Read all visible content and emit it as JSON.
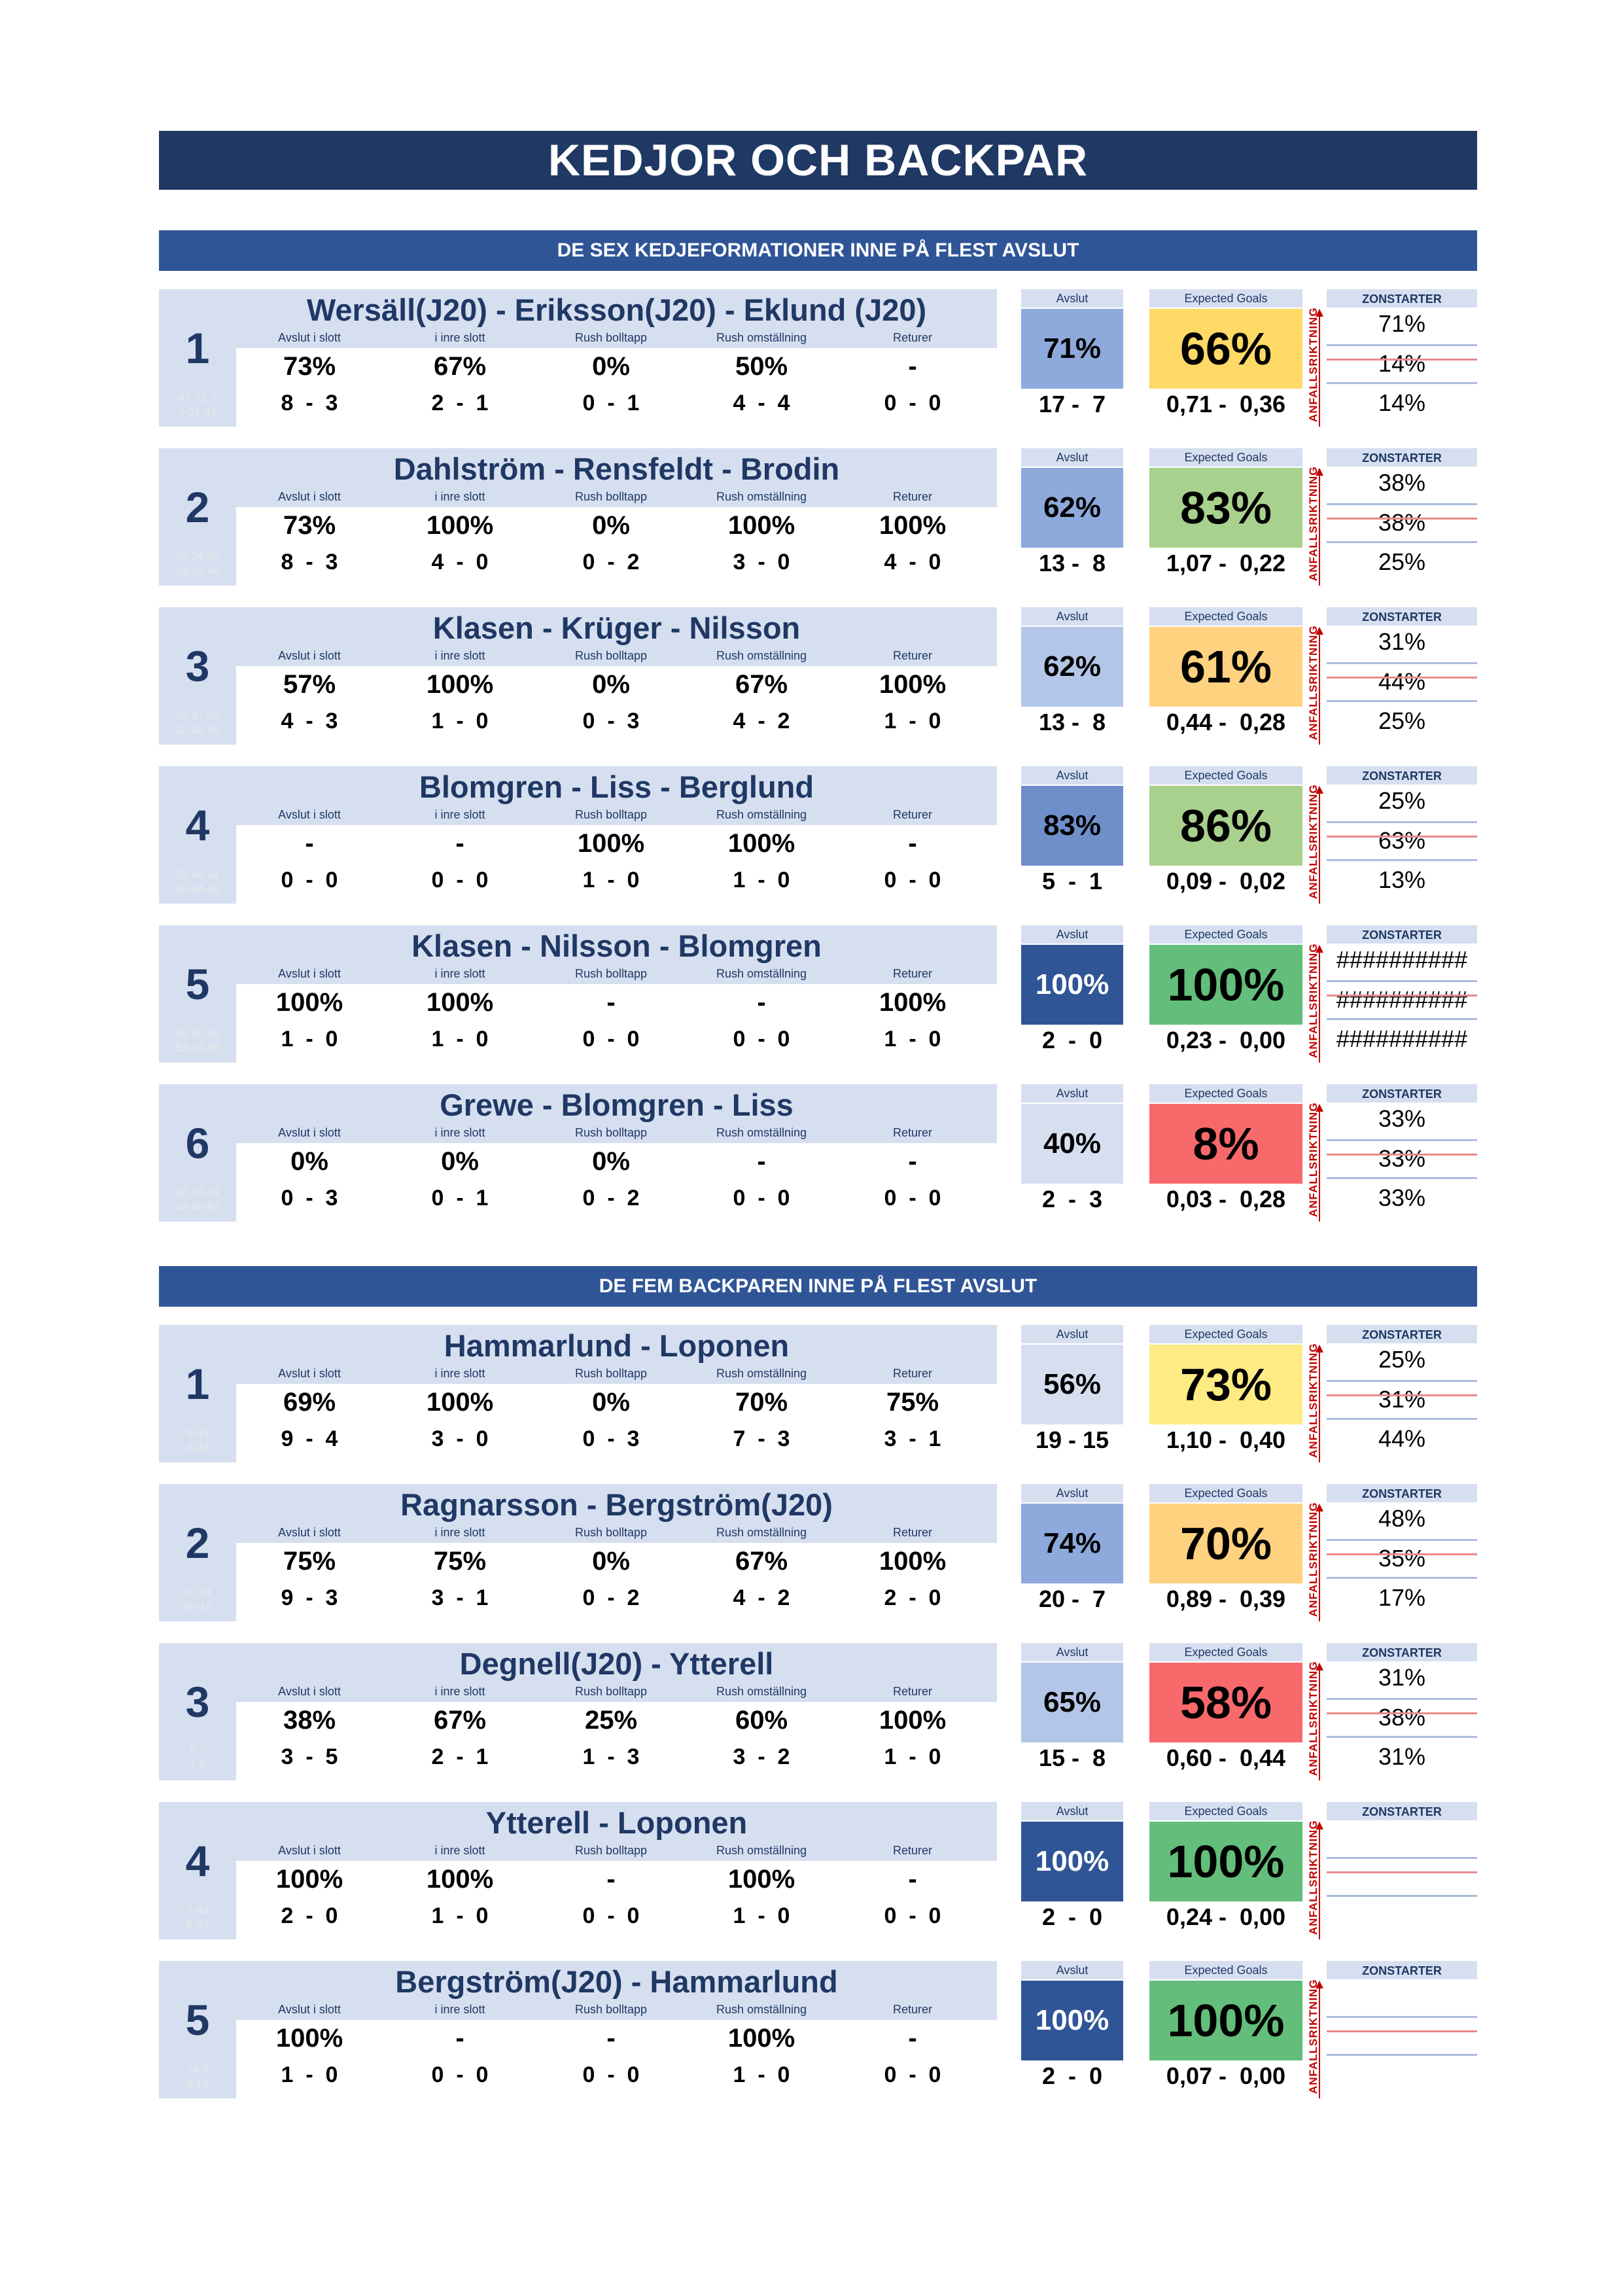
{
  "page_title": "KEDJOR OCH BACKPAR",
  "columns": {
    "stat_headers": [
      "Avslut i slott",
      "i inre slott",
      "Rush bolltapp",
      "Rush omställning",
      "Returer"
    ],
    "avslut": "Avslut",
    "xg": "Expected Goals",
    "zonstarter": "ZONSTARTER",
    "arrow_label": "ANFALLSRIKTNING"
  },
  "colors": {
    "title_bg": "#1f3864",
    "section_bg": "#2f5597",
    "band_bg": "#d6dff0",
    "arrow": "#c00000"
  },
  "sections": [
    {
      "title": "DE SEX KEDJEFORMATIONER INNE PÅ FLEST AVSLUT",
      "cards": [
        {
          "num": "1",
          "faint": [
            "41  31  2",
            "7-21-41"
          ],
          "name": "Wersäll(J20) - Eriksson(J20) - Eklund (J20)",
          "stats": [
            [
              "73%",
              "8  -  3"
            ],
            [
              "67%",
              "2  -  1"
            ],
            [
              "0%",
              "0  -  1"
            ],
            [
              "50%",
              "4  -  4"
            ],
            [
              "-",
              "0  -  0"
            ]
          ],
          "avslut": "71%",
          "avslut_count": "17 -  7",
          "avslut_color": "#8ea9db",
          "xg": "66%",
          "xg_count": "0,71 -  0,36",
          "xg_color": "#ffd966",
          "zon": [
            "71%",
            "14%",
            "14%"
          ]
        },
        {
          "num": "2",
          "faint": [
            "46  34  36",
            "24-34-46"
          ],
          "name": "Dahlström - Rensfeldt - Brodin",
          "stats": [
            [
              "73%",
              "8  -  3"
            ],
            [
              "100%",
              "4  -  0"
            ],
            [
              "0%",
              "0  -  2"
            ],
            [
              "100%",
              "3  -  0"
            ],
            [
              "100%",
              "4  -  0"
            ]
          ],
          "avslut": "62%",
          "avslut_count": "13 -  8",
          "avslut_color": "#8ea9db",
          "xg": "83%",
          "xg_count": "1,07 -  0,22",
          "xg_color": "#a9d18e",
          "zon": [
            "38%",
            "38%",
            "25%"
          ]
        },
        {
          "num": "3",
          "faint": [
            "86  37  63",
            "32-62-86"
          ],
          "name": "Klasen - Krüger - Nilsson",
          "stats": [
            [
              "57%",
              "4  -  3"
            ],
            [
              "100%",
              "1  -  0"
            ],
            [
              "0%",
              "0  -  3"
            ],
            [
              "67%",
              "4  -  2"
            ],
            [
              "100%",
              "1  -  0"
            ]
          ],
          "avslut": "62%",
          "avslut_count": "13 -  8",
          "avslut_color": "#b4c6e7",
          "xg": "61%",
          "xg_count": "0,44 -  0,28",
          "xg_color": "#ffd27f",
          "zon": [
            "31%",
            "44%",
            "25%"
          ]
        },
        {
          "num": "4",
          "faint": [
            "53  44  34",
            "35-44-53"
          ],
          "name": "Blomgren - Liss - Berglund",
          "stats": [
            [
              "-",
              "0  -  0"
            ],
            [
              "-",
              "0  -  0"
            ],
            [
              "100%",
              "1  -  0"
            ],
            [
              "100%",
              "1  -  0"
            ],
            [
              "-",
              "0  -  0"
            ]
          ],
          "avslut": "83%",
          "avslut_count": "5  -  1",
          "avslut_color": "#6f8fcb",
          "xg": "86%",
          "xg_count": "0,09 -  0,02",
          "xg_color": "#a9d18e",
          "zon": [
            "25%",
            "63%",
            "13%"
          ]
        },
        {
          "num": "5",
          "faint": [
            "86  62  53",
            "53-62-86"
          ],
          "name": "Klasen - Nilsson - Blomgren",
          "stats": [
            [
              "100%",
              "1  -  0"
            ],
            [
              "100%",
              "1  -  0"
            ],
            [
              "-",
              "0  -  0"
            ],
            [
              "-",
              "0  -  0"
            ],
            [
              "100%",
              "1  -  0"
            ]
          ],
          "avslut": "100%",
          "avslut_count": "2  -  0",
          "avslut_color": "#2f5597",
          "xg": "100%",
          "xg_count": "0,23 -  0,00",
          "xg_color": "#63be7b",
          "zon": [
            "##########",
            "##########",
            "##########"
          ]
        },
        {
          "num": "6",
          "faint": [
            "46  53  44",
            "44-46-53"
          ],
          "name": "Grewe - Blomgren - Liss",
          "stats": [
            [
              "0%",
              "0  -  3"
            ],
            [
              "0%",
              "0  -  1"
            ],
            [
              "0%",
              "0  -  2"
            ],
            [
              "-",
              "0  -  0"
            ],
            [
              "-",
              "0  -  0"
            ]
          ],
          "avslut": "40%",
          "avslut_count": "2  -  3",
          "avslut_color": "#d6dff0",
          "xg": "8%",
          "xg_count": "0,03 -  0,28",
          "xg_color": "#f8696b",
          "zon": [
            "33%",
            "33%",
            "33%"
          ]
        }
      ]
    },
    {
      "title": "DE FEM BACKPAREN INNE PÅ FLEST AVSLUT",
      "cards": [
        {
          "num": "1",
          "faint": [
            "8  43",
            "6-43"
          ],
          "name": "Hammarlund - Loponen",
          "stats": [
            [
              "69%",
              "9  -  4"
            ],
            [
              "100%",
              "3  -  0"
            ],
            [
              "0%",
              "0  -  3"
            ],
            [
              "70%",
              "7  -  3"
            ],
            [
              "75%",
              "3  -  1"
            ]
          ],
          "avslut": "56%",
          "avslut_count": "19 - 15",
          "avslut_color": "#d6dff0",
          "xg": "73%",
          "xg_count": "1,10 -  0,40",
          "xg_color": "#ffeb84",
          "zon": [
            "25%",
            "31%",
            "44%"
          ]
        },
        {
          "num": "2",
          "faint": [
            "10  14",
            "10-14"
          ],
          "name": "Ragnarsson - Bergström(J20)",
          "stats": [
            [
              "75%",
              "9  -  3"
            ],
            [
              "75%",
              "3  -  1"
            ],
            [
              "0%",
              "0  -  2"
            ],
            [
              "67%",
              "4  -  2"
            ],
            [
              "100%",
              "2  -  0"
            ]
          ],
          "avslut": "74%",
          "avslut_count": "20 -  7",
          "avslut_color": "#8ea9db",
          "xg": "70%",
          "xg_count": "0,89 -  0,39",
          "xg_color": "#ffd27f",
          "zon": [
            "48%",
            "35%",
            "17%"
          ]
        },
        {
          "num": "3",
          "faint": [
            "6  7",
            "1-6"
          ],
          "name": "Degnell(J20) - Ytterell",
          "stats": [
            [
              "38%",
              "3  -  5"
            ],
            [
              "67%",
              "2  -  1"
            ],
            [
              "25%",
              "1  -  3"
            ],
            [
              "60%",
              "3  -  2"
            ],
            [
              "100%",
              "1  -  0"
            ]
          ],
          "avslut": "65%",
          "avslut_count": "15 -  8",
          "avslut_color": "#b4c6e7",
          "xg": "58%",
          "xg_count": "0,60 -  0,44",
          "xg_color": "#f8696b",
          "zon": [
            "31%",
            "38%",
            "31%"
          ]
        },
        {
          "num": "4",
          "faint": [
            "6  43",
            "6-43"
          ],
          "name": "Ytterell - Loponen",
          "stats": [
            [
              "100%",
              "2  -  0"
            ],
            [
              "100%",
              "1  -  0"
            ],
            [
              "-",
              "0  -  0"
            ],
            [
              "100%",
              "1  -  0"
            ],
            [
              "-",
              "0  -  0"
            ]
          ],
          "avslut": "100%",
          "avslut_count": "2  -  0",
          "avslut_color": "#2f5597",
          "xg": "100%",
          "xg_count": "0,24 -  0,00",
          "xg_color": "#63be7b",
          "zon": [
            "",
            "",
            ""
          ]
        },
        {
          "num": "5",
          "faint": [
            "14  8",
            "8-14"
          ],
          "name": "Bergström(J20) - Hammarlund",
          "stats": [
            [
              "100%",
              "1  -  0"
            ],
            [
              "-",
              "0  -  0"
            ],
            [
              "-",
              "0  -  0"
            ],
            [
              "100%",
              "1  -  0"
            ],
            [
              "-",
              "0  -  0"
            ]
          ],
          "avslut": "100%",
          "avslut_count": "2  -  0",
          "avslut_color": "#2f5597",
          "xg": "100%",
          "xg_count": "0,07 -  0,00",
          "xg_color": "#63be7b",
          "zon": [
            "",
            "",
            ""
          ]
        }
      ]
    }
  ]
}
